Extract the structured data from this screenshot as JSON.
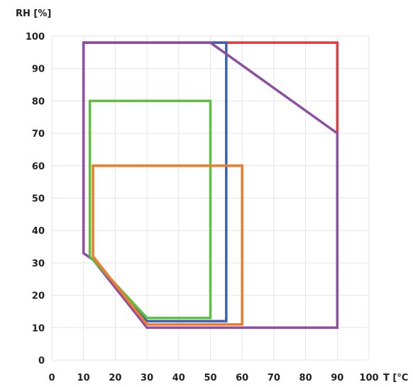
{
  "chart_data": {
    "type": "line",
    "title": "",
    "xlabel": "T [°C",
    "ylabel": "RH [%]",
    "xlim": [
      0,
      100
    ],
    "ylim": [
      0,
      100
    ],
    "x_ticks": [
      0,
      10,
      20,
      30,
      40,
      50,
      60,
      70,
      80,
      90,
      100
    ],
    "y_ticks": [
      0,
      10,
      20,
      30,
      40,
      50,
      60,
      70,
      80,
      90,
      100
    ],
    "grid": true,
    "legend": "none",
    "series": [
      {
        "color": "#e8383d",
        "points": [
          [
            10,
            98
          ],
          [
            90,
            98
          ],
          [
            90,
            70
          ]
        ]
      },
      {
        "color": "#3a5fb7",
        "points": [
          [
            10,
            33
          ],
          [
            10,
            98
          ],
          [
            55,
            98
          ],
          [
            55,
            12
          ],
          [
            30,
            12
          ],
          [
            13,
            31
          ],
          [
            10,
            33
          ]
        ]
      },
      {
        "color": "#8e4fa3",
        "points": [
          [
            10,
            98
          ],
          [
            50,
            98
          ],
          [
            90,
            70
          ],
          [
            90,
            10
          ],
          [
            30,
            10
          ],
          [
            13,
            31
          ],
          [
            10,
            33
          ],
          [
            10,
            98
          ]
        ]
      },
      {
        "color": "#5cbf3f",
        "points": [
          [
            12,
            32
          ],
          [
            12,
            80
          ],
          [
            50,
            80
          ],
          [
            50,
            13
          ],
          [
            30,
            13
          ],
          [
            12,
            32
          ]
        ]
      },
      {
        "color": "#f07a2a",
        "points": [
          [
            13,
            32
          ],
          [
            13,
            60
          ],
          [
            60,
            60
          ],
          [
            60,
            11
          ],
          [
            30,
            11
          ],
          [
            13,
            32
          ]
        ]
      }
    ]
  }
}
